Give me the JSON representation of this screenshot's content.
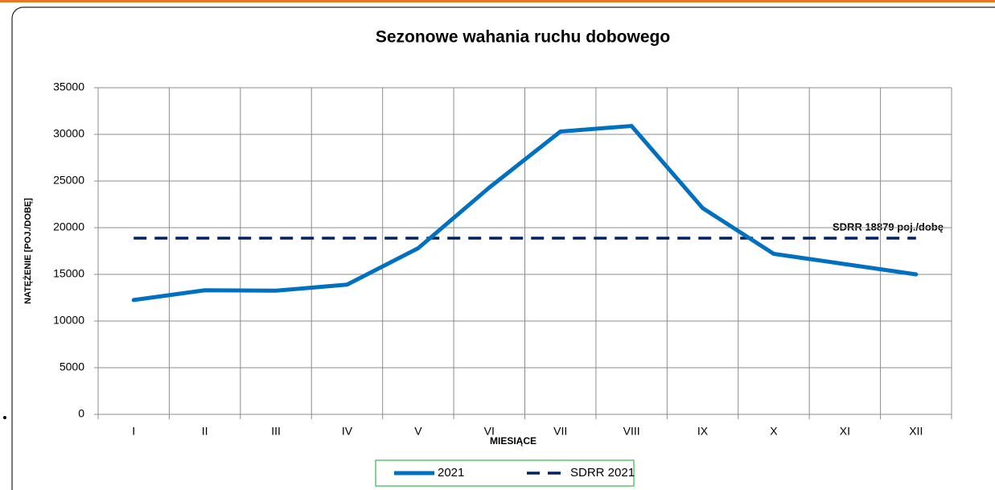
{
  "chart_data": {
    "type": "line",
    "title": "Sezonowe wahania ruchu dobowego",
    "xlabel": "MIESIĄCE",
    "ylabel": "NATĘŻENIE [POJ./DOBĘ]",
    "annotation": "SDRR 18879 poj./dobę",
    "categories": [
      "I",
      "II",
      "III",
      "IV",
      "V",
      "VI",
      "VII",
      "VIII",
      "IX",
      "X",
      "XI",
      "XII"
    ],
    "series": [
      {
        "name": "2021",
        "color": "#0070c0",
        "dashed": false,
        "values": [
          12250,
          13300,
          13250,
          13900,
          17800,
          24300,
          30300,
          30900,
          22100,
          17200,
          16100,
          15000
        ]
      },
      {
        "name": "SDRR 2021",
        "color": "#002060",
        "dashed": true,
        "values": [
          18879,
          18879,
          18879,
          18879,
          18879,
          18879,
          18879,
          18879,
          18879,
          18879,
          18879,
          18879
        ]
      }
    ],
    "ylim": [
      0,
      35000
    ],
    "yticks": [
      0,
      5000,
      10000,
      15000,
      20000,
      25000,
      30000,
      35000
    ],
    "grid": true
  }
}
